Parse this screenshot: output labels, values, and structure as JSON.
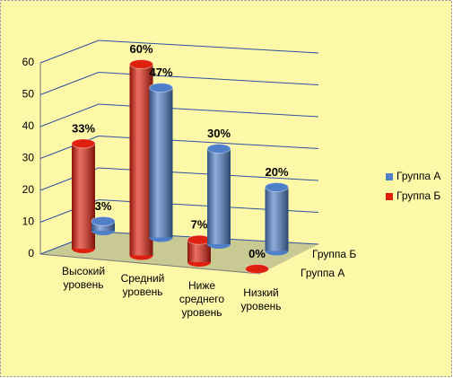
{
  "chart_data": {
    "type": "bar3d",
    "categories": [
      "Высокий уровень",
      "Средний уровень",
      "Ниже среднего уровень",
      "Низкий уровень"
    ],
    "series": [
      {
        "name": "Группа А",
        "color": "#4f7fc8",
        "values": [
          3,
          47,
          30,
          20
        ],
        "value_labels": [
          "3%",
          "47%",
          "30%",
          "20%"
        ]
      },
      {
        "name": "Группа Б",
        "color": "#e0200e",
        "values": [
          33,
          60,
          7,
          0
        ],
        "value_labels": [
          "33%",
          "60%",
          "7%",
          "0%"
        ]
      }
    ],
    "ylim": [
      0,
      60
    ],
    "yticks": [
      0,
      10,
      20,
      30,
      40,
      50,
      60
    ],
    "grid": true,
    "legend": "right"
  }
}
